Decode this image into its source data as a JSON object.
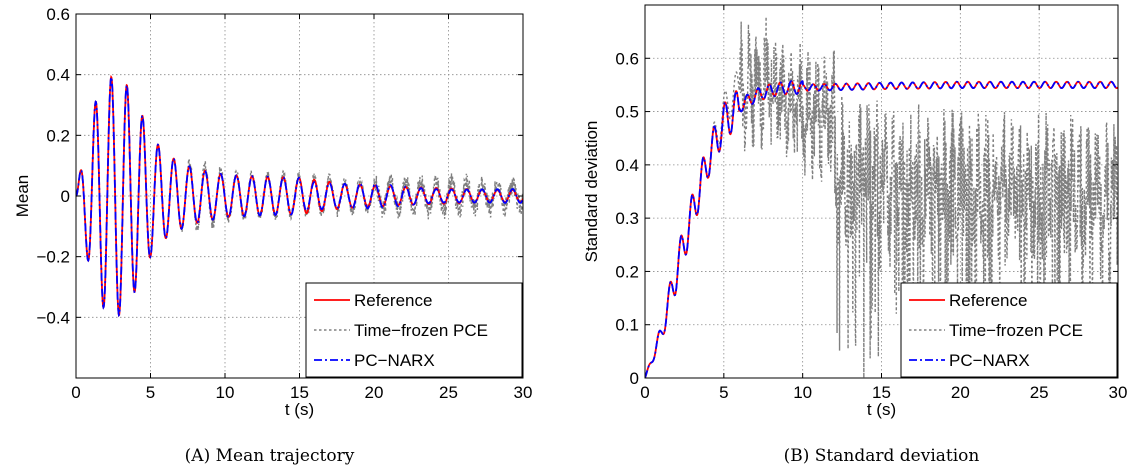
{
  "chart_data": [
    {
      "type": "line",
      "panel": "A",
      "caption": "(A) Mean trajectory",
      "xlabel": "t (s)",
      "ylabel": "Mean",
      "xlim": [
        0,
        30
      ],
      "ylim": [
        -0.6,
        0.6
      ],
      "xticks": [
        0,
        5,
        10,
        15,
        20,
        25,
        30
      ],
      "yticks": [
        -0.4,
        -0.2,
        0,
        0.2,
        0.4,
        0.6
      ],
      "ytick_labels": [
        "−0.4",
        "−0.2",
        "0",
        "0.2",
        "0.4",
        "0.6"
      ],
      "grid": true,
      "legend_position": "bottom-right",
      "series": [
        {
          "name": "Reference",
          "color": "#ff0000",
          "style": "solid",
          "x": [
            0,
            0.5,
            1.0,
            1.5,
            2.0,
            2.6,
            3.0,
            3.5,
            4.0,
            4.6,
            5.0,
            6.0,
            7.0,
            8.0,
            9.0,
            10.0,
            12.0,
            15.0,
            18.0,
            20.0,
            22.0,
            25.0,
            28.0,
            30.0
          ],
          "envelope": [
            0.0,
            0.14,
            0.26,
            0.34,
            0.38,
            0.4,
            0.39,
            0.36,
            0.31,
            0.25,
            0.2,
            0.14,
            0.11,
            0.09,
            0.08,
            0.07,
            0.065,
            0.06,
            0.04,
            0.035,
            0.03,
            0.025,
            0.02,
            0.02
          ]
        },
        {
          "name": "Time−frozen PCE",
          "color": "#808080",
          "style": "dotted",
          "x": [
            0,
            0.5,
            1.0,
            1.5,
            2.0,
            2.6,
            3.0,
            3.5,
            4.0,
            4.6,
            5.0,
            6.0,
            7.0,
            8.0,
            9.0,
            10.0,
            12.0,
            15.0,
            18.0,
            20.0,
            22.0,
            25.0,
            28.0,
            30.0
          ],
          "envelope": [
            0.0,
            0.14,
            0.26,
            0.34,
            0.38,
            0.4,
            0.39,
            0.36,
            0.31,
            0.25,
            0.2,
            0.14,
            0.11,
            0.11,
            0.1,
            0.08,
            0.07,
            0.065,
            0.05,
            0.045,
            0.045,
            0.05,
            0.04,
            0.035
          ]
        },
        {
          "name": "PC−NARX",
          "color": "#0000ff",
          "style": "dashdot",
          "x": [
            0,
            0.5,
            1.0,
            1.5,
            2.0,
            2.6,
            3.0,
            3.5,
            4.0,
            4.6,
            5.0,
            6.0,
            7.0,
            8.0,
            9.0,
            10.0,
            12.0,
            15.0,
            18.0,
            20.0,
            22.0,
            25.0,
            28.0,
            30.0
          ],
          "envelope": [
            0.0,
            0.14,
            0.26,
            0.34,
            0.38,
            0.4,
            0.39,
            0.36,
            0.31,
            0.25,
            0.2,
            0.14,
            0.11,
            0.09,
            0.08,
            0.07,
            0.065,
            0.06,
            0.04,
            0.035,
            0.03,
            0.025,
            0.02,
            0.02
          ]
        }
      ]
    },
    {
      "type": "line",
      "panel": "B",
      "caption": "(B) Standard deviation",
      "xlabel": "t (s)",
      "ylabel": "Standard deviation",
      "xlim": [
        0,
        30
      ],
      "ylim": [
        0,
        0.7
      ],
      "xticks": [
        0,
        5,
        10,
        15,
        20,
        25,
        30
      ],
      "yticks": [
        0,
        0.1,
        0.2,
        0.3,
        0.4,
        0.5,
        0.6
      ],
      "ytick_labels": [
        "0",
        "0.1",
        "0.2",
        "0.3",
        "0.4",
        "0.5",
        "0.6"
      ],
      "grid": true,
      "legend_position": "bottom-right",
      "series": [
        {
          "name": "Reference",
          "color": "#ff0000",
          "style": "solid",
          "x": [
            0,
            1,
            2,
            3,
            4,
            5,
            6,
            7,
            8,
            9,
            10,
            12,
            15,
            20,
            25,
            30
          ],
          "y": [
            0,
            0.08,
            0.2,
            0.31,
            0.41,
            0.48,
            0.51,
            0.53,
            0.54,
            0.545,
            0.545,
            0.546,
            0.548,
            0.55,
            0.55,
            0.55
          ]
        },
        {
          "name": "Time−frozen PCE",
          "color": "#808080",
          "style": "dotted",
          "x": [
            0,
            1,
            2,
            3,
            4,
            5,
            6,
            7,
            8,
            9,
            10,
            12,
            15,
            20,
            25,
            30
          ],
          "y": [
            0,
            0.08,
            0.2,
            0.31,
            0.41,
            0.5,
            0.55,
            0.56,
            0.55,
            0.52,
            0.5,
            0.49,
            0.48,
            0.46,
            0.46,
            0.45
          ]
        },
        {
          "name": "PC−NARX",
          "color": "#0000ff",
          "style": "dashdot",
          "x": [
            0,
            1,
            2,
            3,
            4,
            5,
            6,
            7,
            8,
            9,
            10,
            12,
            15,
            20,
            25,
            30
          ],
          "y": [
            0,
            0.08,
            0.2,
            0.31,
            0.41,
            0.48,
            0.51,
            0.53,
            0.54,
            0.545,
            0.545,
            0.546,
            0.548,
            0.55,
            0.55,
            0.55
          ]
        }
      ]
    }
  ]
}
